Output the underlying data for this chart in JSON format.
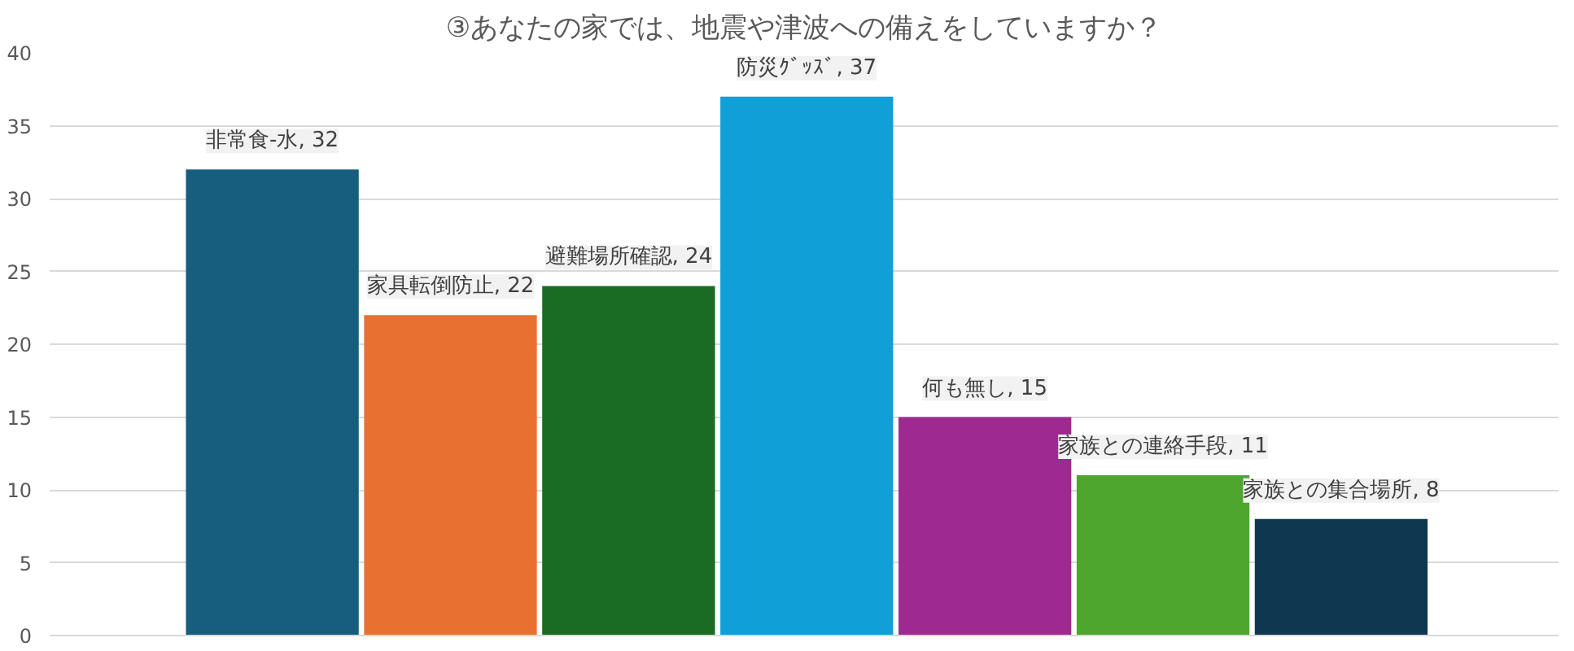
{
  "chart_data": {
    "type": "bar",
    "title": "③あなたの家では、地震や津波への備えをしていますか？",
    "categories": [
      null,
      null,
      null,
      null,
      null,
      null,
      null
    ],
    "values": [
      32,
      22,
      24,
      37,
      15,
      11,
      8
    ],
    "colors": [
      "#175e7e",
      "#e87132",
      "#1a6b23",
      "#109fd6",
      "#9d2b8f",
      "#4ea62f",
      "#0e384f"
    ],
    "value_labels": [
      "非常食-水, 32",
      "家具転倒防止, 22",
      "避難場所確認, 24",
      "防災ｸﾞｯｽﾞ, 37",
      "何も無し, 15",
      "家族との連絡手段, 11",
      "家族との集合場所, 8"
    ],
    "ylim": [
      0,
      40
    ],
    "yticks": [
      0,
      5,
      10,
      15,
      20,
      25,
      30,
      35,
      40
    ],
    "grid": "y",
    "tick_labels": "y"
  }
}
